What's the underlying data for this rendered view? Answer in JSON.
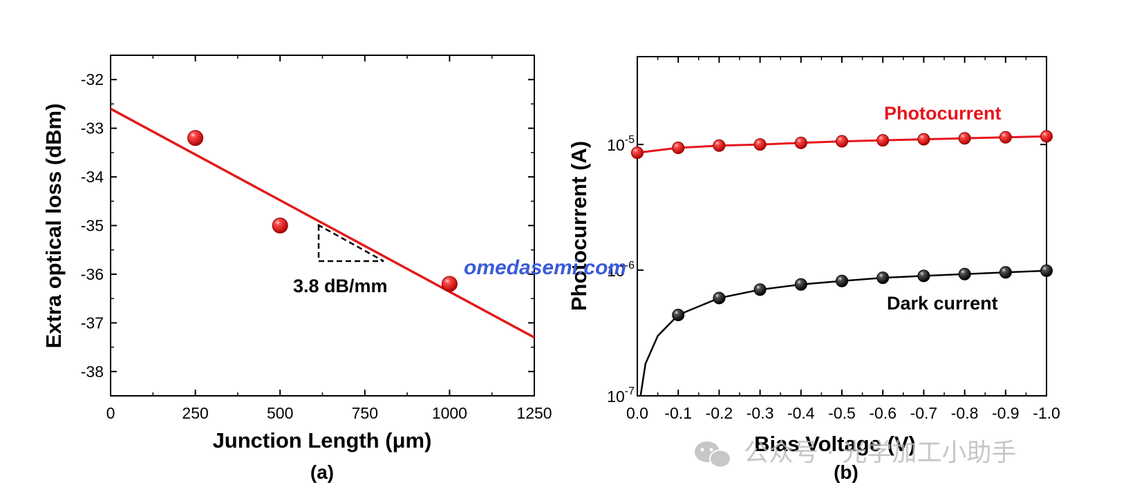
{
  "chart_data": [
    {
      "type": "scatter",
      "panel_label": "(a)",
      "xlabel": "Junction Length (μm)",
      "ylabel": "Extra optical loss (dBm)",
      "xlim": [
        0,
        1250
      ],
      "ylim": [
        -38.5,
        -31.5
      ],
      "x_ticks": [
        "0",
        "250",
        "500",
        "750",
        "1000",
        "1250"
      ],
      "x_tick_values": [
        0,
        250,
        500,
        750,
        1000,
        1250
      ],
      "y_ticks": [
        "-32",
        "-33",
        "-34",
        "-35",
        "-36",
        "-37",
        "-38"
      ],
      "y_tick_values": [
        -32,
        -33,
        -34,
        -35,
        -36,
        -37,
        -38
      ],
      "points": [
        {
          "x": 250,
          "y": -33.2
        },
        {
          "x": 500,
          "y": -35.0
        },
        {
          "x": 1000,
          "y": -36.2
        }
      ],
      "fit_line": {
        "x": [
          0,
          1250
        ],
        "y": [
          -32.6,
          -37.3
        ]
      },
      "annotation": "3.8 dB/mm",
      "colors": {
        "points": "#e8141b",
        "line": "#e11b1b",
        "annotation": "#000000"
      }
    },
    {
      "type": "line",
      "panel_label": "(b)",
      "xlabel": "Bias Voltage (V)",
      "ylabel": "Photocurrent (A)",
      "yscale": "log",
      "xlim": [
        0.0,
        -1.0
      ],
      "ylim": [
        1e-07,
        5e-05
      ],
      "x_ticks": [
        "0.0",
        "-0.1",
        "-0.2",
        "-0.3",
        "-0.4",
        "-0.5",
        "-0.6",
        "-0.7",
        "-0.8",
        "-0.9",
        "-1.0"
      ],
      "x_tick_values": [
        0,
        -0.1,
        -0.2,
        -0.3,
        -0.4,
        -0.5,
        -0.6,
        -0.7,
        -0.8,
        -0.9,
        -1.0
      ],
      "y_ticks": [
        {
          "base": "10",
          "exp": "-5",
          "value": 1e-05
        },
        {
          "base": "10",
          "exp": "-6",
          "value": 1e-06
        },
        {
          "base": "10",
          "exp": "-7",
          "value": 1e-07
        }
      ],
      "series": [
        {
          "name": "Photocurrent",
          "color": "#e8141b",
          "x": [
            0,
            -0.1,
            -0.2,
            -0.3,
            -0.4,
            -0.5,
            -0.6,
            -0.7,
            -0.8,
            -0.9,
            -1.0
          ],
          "y": [
            8.6e-06,
            9.4e-06,
            9.8e-06,
            1e-05,
            1.03e-05,
            1.06e-05,
            1.08e-05,
            1.1e-05,
            1.12e-05,
            1.14e-05,
            1.16e-05
          ]
        },
        {
          "name": "Dark current",
          "color": "#1a1a1a",
          "x": [
            -0.1,
            -0.2,
            -0.3,
            -0.4,
            -0.5,
            -0.6,
            -0.7,
            -0.8,
            -0.9,
            -1.0
          ],
          "y": [
            4.4e-07,
            6e-07,
            7e-07,
            7.7e-07,
            8.2e-07,
            8.7e-07,
            9e-07,
            9.3e-07,
            9.6e-07,
            9.9e-07
          ]
        }
      ]
    }
  ],
  "watermarks": {
    "site": "omedasemi.com",
    "account": "公众号 · 光学加工小助手"
  }
}
